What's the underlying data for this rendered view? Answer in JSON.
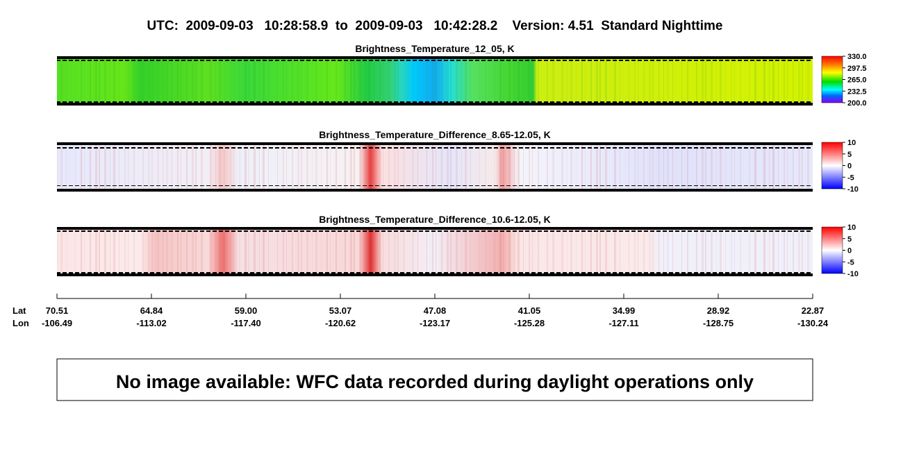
{
  "header": {
    "title": "UTC:  2009-09-03   10:28:58.9  to  2009-09-03   10:42:28.2    Version: 4.51  Standard Nighttime"
  },
  "panels": [
    {
      "title": "Brightness_Temperature_12_05, K",
      "colorbar": [
        "330.0",
        "297.5",
        "265.0",
        "232.5",
        "200.0"
      ]
    },
    {
      "title": "Brightness_Temperature_Difference_8.65-12.05, K",
      "colorbar": [
        "10",
        "5",
        "0",
        "-5",
        "-10"
      ]
    },
    {
      "title": "Brightness_Temperature_Difference_10.6-12.05, K",
      "colorbar": [
        "10",
        "5",
        "0",
        "-5",
        "-10"
      ]
    }
  ],
  "axis": {
    "lat_label": "Lat",
    "lon_label": "Lon",
    "lat": [
      "70.51",
      "64.84",
      "59.00",
      "53.07",
      "47.08",
      "41.05",
      "34.99",
      "28.92",
      "22.87"
    ],
    "lon": [
      "-106.49",
      "-113.02",
      "-117.40",
      "-120.62",
      "-123.17",
      "-125.28",
      "-127.11",
      "-128.75",
      "-130.24"
    ]
  },
  "message": "No image available: WFC data recorded during daylight operations only"
}
